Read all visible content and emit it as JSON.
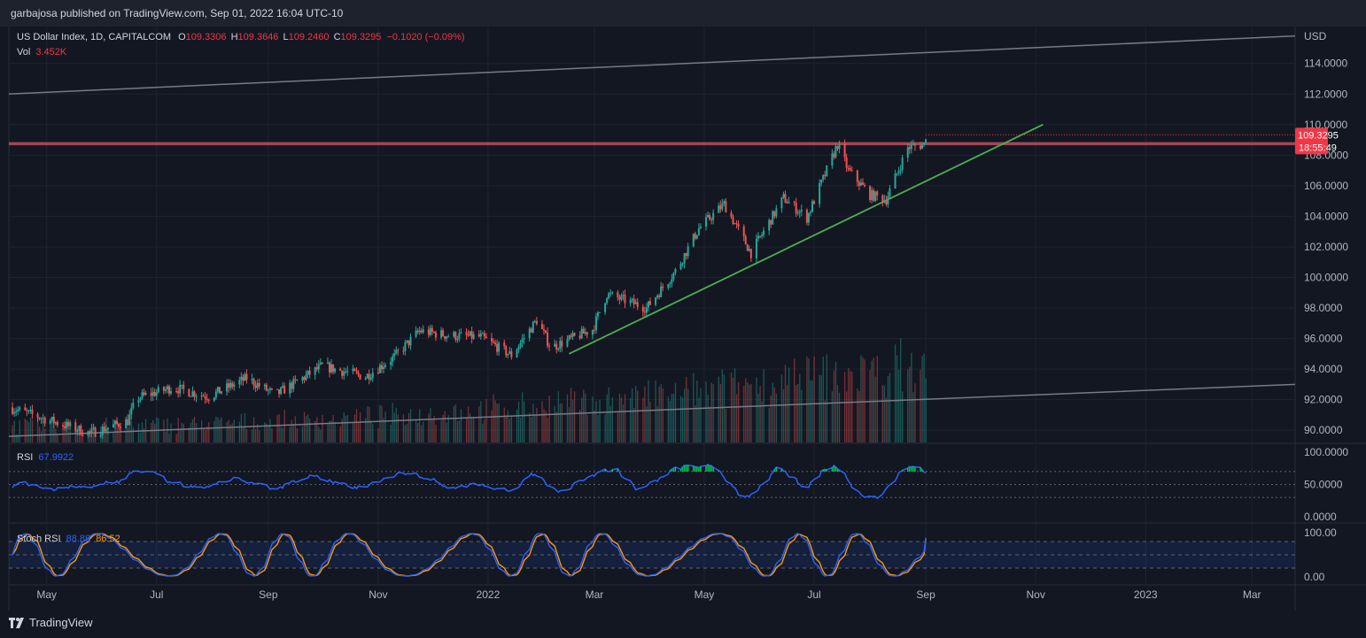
{
  "header": {
    "publisher": "garbajosa published on TradingView.com, Sep 01, 2022 16:04 UTC-10"
  },
  "legend": {
    "symbol": "US Dollar Index, 1D, CAPITALCOM",
    "o_label": "O",
    "o": "109.3306",
    "h_label": "H",
    "h": "109.3646",
    "l_label": "L",
    "l": "109.2460",
    "c_label": "C",
    "c": "109.3295",
    "change": "−0.1020 (−0.09%)",
    "vol_label": "Vol",
    "vol": "3.452K"
  },
  "rsi_legend": {
    "label": "RSI",
    "value": "67.9922"
  },
  "stoch_legend": {
    "label": "Stoch RSI",
    "k": "88.88",
    "d": "86.52"
  },
  "axes": {
    "currency": "USD",
    "price_ticks": [
      "114.0000",
      "112.0000",
      "110.0000",
      "108.0000",
      "106.0000",
      "104.0000",
      "102.0000",
      "100.0000",
      "98.0000",
      "96.0000",
      "94.0000",
      "92.0000",
      "90.0000"
    ],
    "rsi_ticks": [
      "100.0000",
      "50.0000",
      "0.0000"
    ],
    "stoch_ticks": [
      "100.00",
      "0.00"
    ],
    "x_ticks": [
      "May",
      "Jul",
      "Sep",
      "Nov",
      "2022",
      "Mar",
      "May",
      "Jul",
      "Sep",
      "Nov",
      "2023",
      "Mar"
    ],
    "price_badge": "109.3295",
    "countdown": "18:55:49"
  },
  "footer": {
    "brand": "TradingView"
  },
  "colors": {
    "background": "#131722",
    "up": "#26a69a",
    "down": "#ef5350",
    "rsi": "#2962ff",
    "stoch_k": "#2962ff",
    "stoch_d": "#ff9800",
    "trendline": "#4caf50",
    "resistance": "#b24a5c",
    "channel": "#787b86"
  },
  "chart_data": {
    "type": "candlestick",
    "title": "US Dollar Index, 1D, CAPITALCOM",
    "ylabel": "USD",
    "ylim": [
      89.2,
      116.3
    ],
    "x_range": [
      "2021-04-10",
      "2023-03-25"
    ],
    "last_price": 109.3295,
    "price_path": [
      {
        "date": "2021-04-10",
        "close": 91.5
      },
      {
        "date": "2021-05-25",
        "close": 89.8
      },
      {
        "date": "2021-06-15",
        "close": 90.6
      },
      {
        "date": "2021-06-20",
        "close": 92.1
      },
      {
        "date": "2021-07-10",
        "close": 92.8
      },
      {
        "date": "2021-07-30",
        "close": 92.2
      },
      {
        "date": "2021-08-20",
        "close": 93.4
      },
      {
        "date": "2021-09-05",
        "close": 92.3
      },
      {
        "date": "2021-10-01",
        "close": 94.2
      },
      {
        "date": "2021-10-25",
        "close": 93.5
      },
      {
        "date": "2021-11-10",
        "close": 94.8
      },
      {
        "date": "2021-11-24",
        "close": 96.5
      },
      {
        "date": "2021-12-10",
        "close": 96.2
      },
      {
        "date": "2021-12-28",
        "close": 96.1
      },
      {
        "date": "2022-01-14",
        "close": 94.9
      },
      {
        "date": "2022-01-28",
        "close": 97.2
      },
      {
        "date": "2022-02-05",
        "close": 95.4
      },
      {
        "date": "2022-02-28",
        "close": 96.6
      },
      {
        "date": "2022-03-08",
        "close": 98.9
      },
      {
        "date": "2022-03-30",
        "close": 98.0
      },
      {
        "date": "2022-04-15",
        "close": 100.4
      },
      {
        "date": "2022-04-28",
        "close": 103.2
      },
      {
        "date": "2022-05-12",
        "close": 104.8
      },
      {
        "date": "2022-05-27",
        "close": 101.6
      },
      {
        "date": "2022-06-14",
        "close": 105.2
      },
      {
        "date": "2022-06-27",
        "close": 103.9
      },
      {
        "date": "2022-07-14",
        "close": 108.7
      },
      {
        "date": "2022-07-20",
        "close": 107.0
      },
      {
        "date": "2022-08-01",
        "close": 105.4
      },
      {
        "date": "2022-08-10",
        "close": 105.1
      },
      {
        "date": "2022-08-22",
        "close": 108.5
      },
      {
        "date": "2022-08-31",
        "close": 108.7
      },
      {
        "date": "2022-09-01",
        "close": 109.33
      }
    ],
    "lines": [
      {
        "name": "resistance",
        "points": [
          [
            "2021-04-10",
            108.75
          ],
          [
            "2023-03-25",
            108.75
          ]
        ]
      },
      {
        "name": "rising-support",
        "points": [
          [
            "2022-02-15",
            95.0
          ],
          [
            "2022-11-05",
            110.0
          ]
        ]
      },
      {
        "name": "channel-upper",
        "points": [
          [
            "2021-04-10",
            112.0
          ],
          [
            "2023-03-25",
            115.8
          ]
        ]
      },
      {
        "name": "channel-lower",
        "points": [
          [
            "2021-04-10",
            89.6
          ],
          [
            "2023-03-25",
            93.0
          ]
        ]
      }
    ],
    "rsi": {
      "last": 67.9922,
      "bands": [
        70,
        50,
        30
      ],
      "ylim": [
        0,
        100
      ]
    },
    "stoch_rsi": {
      "k": 88.88,
      "d": 86.52,
      "bands": [
        80,
        50,
        20
      ],
      "ylim": [
        0,
        100
      ]
    },
    "grid": true
  }
}
